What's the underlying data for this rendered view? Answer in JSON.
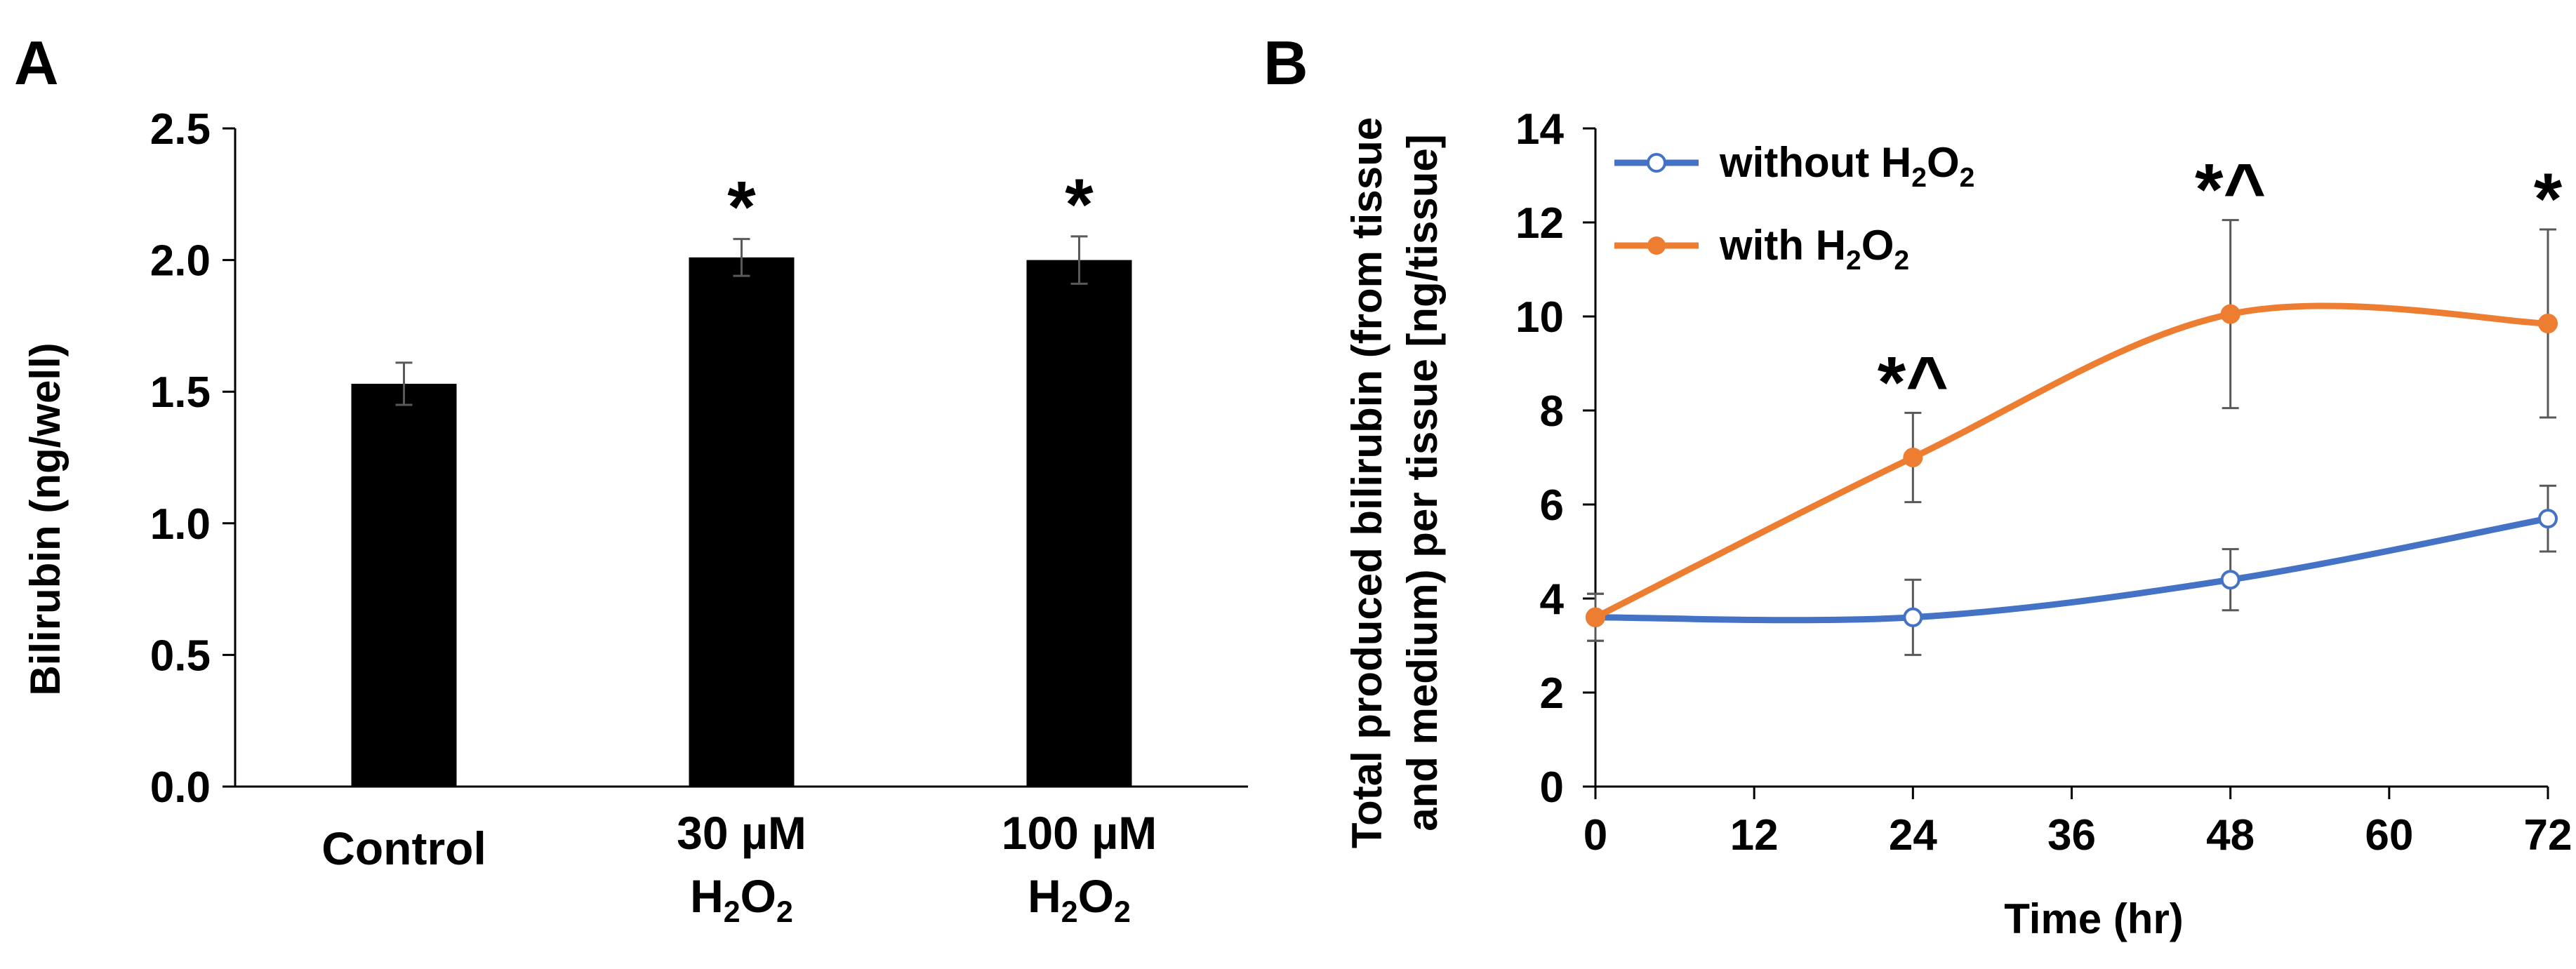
{
  "chart_data": [
    {
      "type": "bar",
      "panel_label": "A",
      "ylabel": "Bilirubin  (ng/well)",
      "ylim": [
        0,
        2.5
      ],
      "yticks": [
        "0.0",
        "0.5",
        "1.0",
        "1.5",
        "2.0",
        "2.5"
      ],
      "categories": [
        {
          "line1": "Control",
          "line2": "",
          "line2_sub": ""
        },
        {
          "line1": "30 µM",
          "line2": "H",
          "line2_sub": "2",
          "line2_mid": "O",
          "line2_sub2": "2"
        },
        {
          "line1": "100 µM",
          "line2": "H",
          "line2_sub": "2",
          "line2_mid": "O",
          "line2_sub2": "2"
        }
      ],
      "values": [
        1.53,
        2.01,
        2.0
      ],
      "errors": [
        0.08,
        0.07,
        0.09
      ],
      "annotations": [
        "",
        "*",
        "*"
      ],
      "bar_color": "#000000"
    },
    {
      "type": "line",
      "panel_label": "B",
      "xlabel": "Time (hr)",
      "ylabel_line1": "Total produced bilirubin (from tissue",
      "ylabel_line2": "and medium) per tissue [ng/tissue]",
      "xlim": [
        0,
        72
      ],
      "ylim": [
        0,
        14
      ],
      "xticks": [
        "0",
        "12",
        "24",
        "36",
        "48",
        "60",
        "72"
      ],
      "yticks": [
        "0",
        "2",
        "4",
        "6",
        "8",
        "10",
        "12",
        "14"
      ],
      "x": [
        0,
        24,
        48,
        72
      ],
      "series": [
        {
          "name": "without H2O2",
          "legend_text": "without H",
          "legend_sub": "2",
          "legend_mid": "O",
          "legend_sub2": "2",
          "values": [
            3.6,
            3.6,
            4.4,
            5.7
          ],
          "errors": [
            0.5,
            0.8,
            0.65,
            0.7
          ],
          "color": "#4472C4",
          "marker": "open-circle"
        },
        {
          "name": "with H2O2",
          "legend_text": "with H",
          "legend_sub": "2",
          "legend_mid": "O",
          "legend_sub2": "2",
          "values": [
            3.6,
            7.0,
            10.05,
            9.85
          ],
          "errors": [
            0.5,
            0.95,
            2.0,
            2.0
          ],
          "color": "#ED7D31",
          "marker": "filled-circle"
        }
      ],
      "annotations": [
        {
          "x": 24,
          "text": "*^"
        },
        {
          "x": 48,
          "text": "*^"
        },
        {
          "x": 72,
          "text": "*"
        }
      ]
    }
  ]
}
